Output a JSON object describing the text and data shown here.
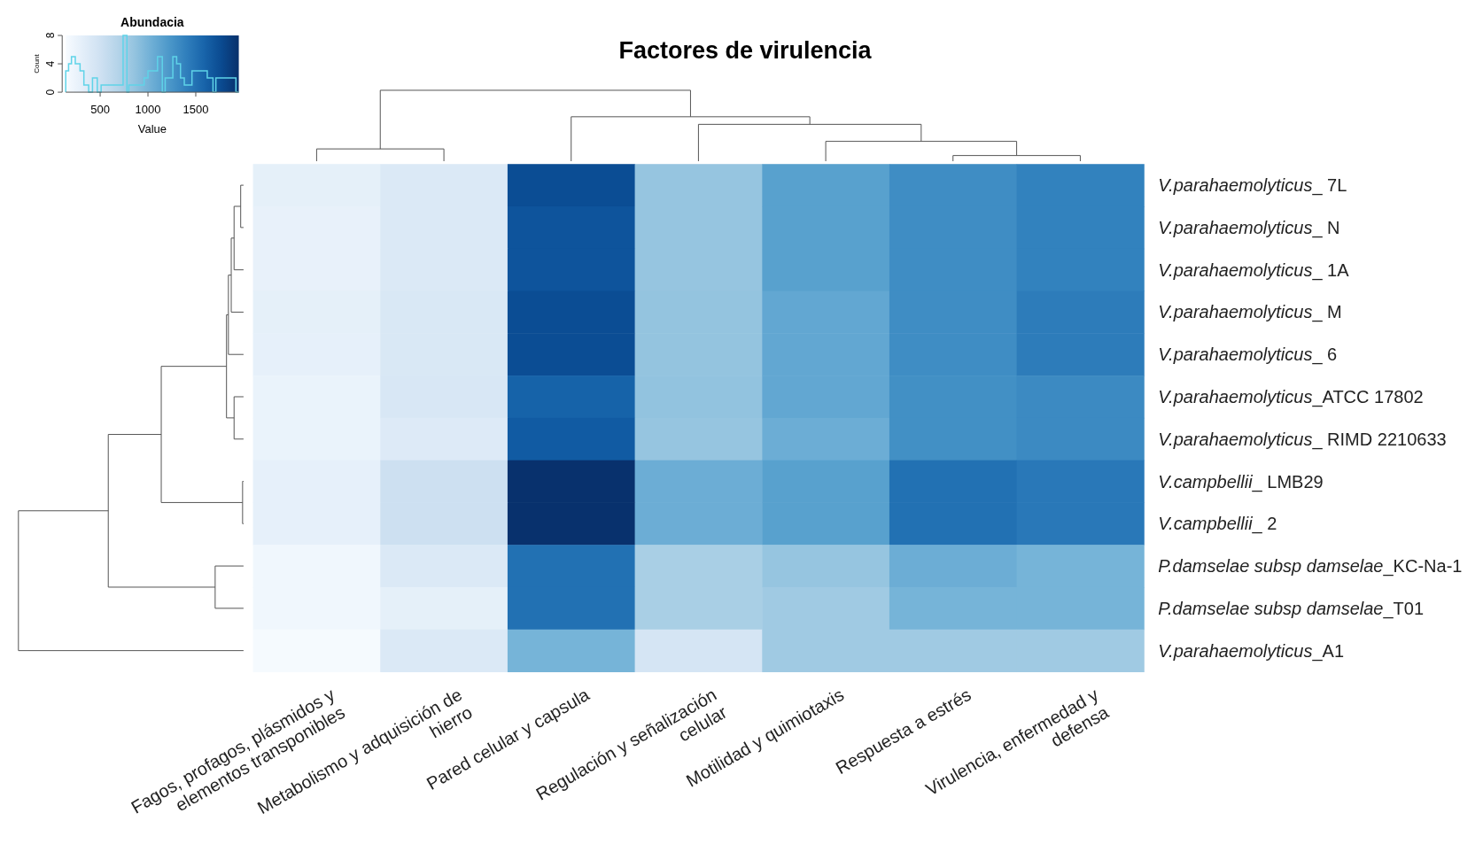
{
  "chart_data": {
    "type": "heatmap",
    "title": "Factores de virulencia",
    "legend_title": "Abundacia",
    "clabel": "Value",
    "categories": [
      "Fagos, profagos, plásmidos y elementos transponibles",
      "Metabolismo y adquisición de hierro",
      "Pared celular y capsula",
      "Regulación y señalización celular",
      "Motilidad y quimiotaxis",
      "Respuesta a estrés",
      "Virulencia,  enfermedad y defensa"
    ],
    "y_categories": [
      "V.parahaemolyticus_ 7L",
      "V.parahaemolyticus_ N",
      "V.parahaemolyticus_ 1A",
      "V.parahaemolyticus_ M",
      "V.parahaemolyticus_ 6",
      "V.parahaemolyticus_ATCC 17802",
      "V.parahaemolyticus_ RIMD 2210633",
      "V.campbellii_ LMB29",
      "V.campbellii_ 2",
      "P.damselae subsp damselae_KC-Na-1",
      "P.damselae subsp damselae_T01",
      "V.parahaemolyticus_A1"
    ],
    "cells": [
      [
        300,
        400,
        1750,
        850,
        1150,
        1300,
        1380
      ],
      [
        280,
        400,
        1700,
        850,
        1150,
        1300,
        1380
      ],
      [
        280,
        400,
        1700,
        850,
        1150,
        1300,
        1380
      ],
      [
        300,
        410,
        1750,
        860,
        1100,
        1300,
        1420
      ],
      [
        290,
        410,
        1750,
        860,
        1100,
        1300,
        1420
      ],
      [
        260,
        420,
        1600,
        870,
        1100,
        1280,
        1320
      ],
      [
        260,
        380,
        1650,
        850,
        1050,
        1280,
        1320
      ],
      [
        290,
        520,
        1940,
        1050,
        1150,
        1500,
        1450
      ],
      [
        290,
        520,
        1940,
        1050,
        1150,
        1500,
        1450
      ],
      [
        200,
        400,
        1500,
        750,
        850,
        1050,
        1000
      ],
      [
        200,
        300,
        1500,
        750,
        800,
        1000,
        1000
      ],
      [
        160,
        400,
        1000,
        450,
        800,
        800,
        800
      ]
    ],
    "clim": [
      140,
      1950
    ],
    "cticks": [
      500,
      1000,
      1500
    ],
    "annotations": [
      "Count",
      "0",
      "4",
      "8"
    ]
  }
}
